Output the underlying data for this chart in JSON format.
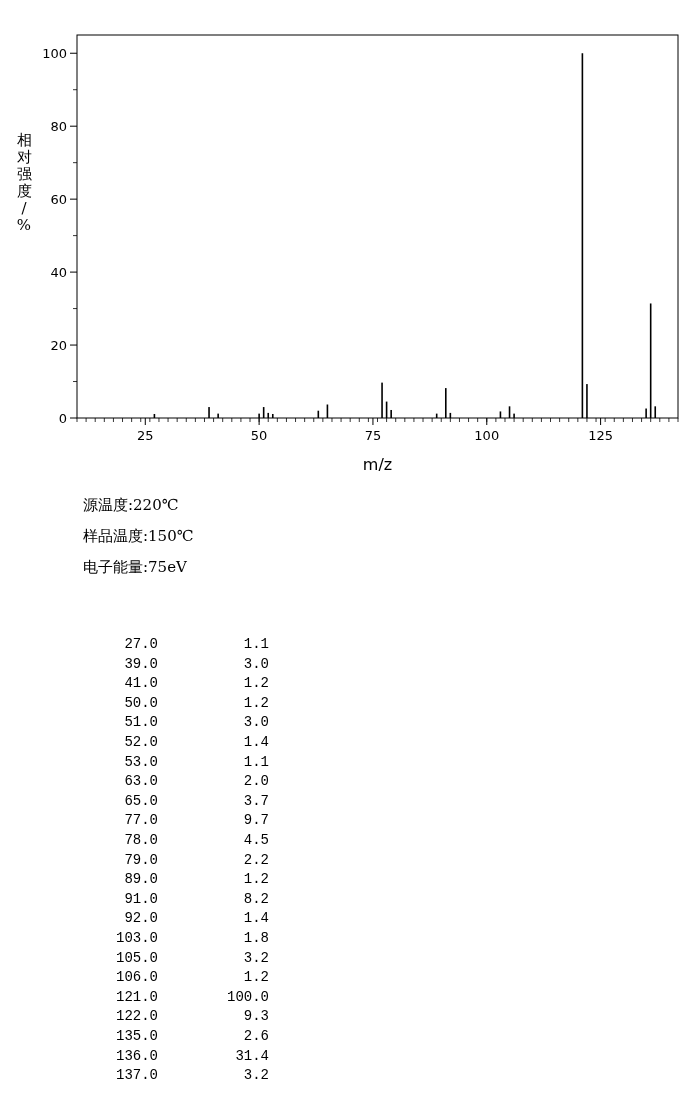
{
  "chart_data": [
    {
      "type": "bar",
      "xlabel": "m/z",
      "ylabel": "相对强度/%",
      "annotations": [
        "源温度:220℃",
        "样品温度:150℃",
        "电子能量:75eV"
      ],
      "x": [
        27,
        39,
        41,
        50,
        51,
        52,
        53,
        63,
        65,
        77,
        78,
        79,
        89,
        91,
        92,
        103,
        105,
        106,
        121,
        122,
        135,
        136,
        137
      ],
      "values": [
        1.1,
        3.0,
        1.2,
        1.2,
        3.0,
        1.4,
        1.1,
        2.0,
        3.7,
        9.7,
        4.5,
        2.2,
        1.2,
        8.2,
        1.4,
        1.8,
        3.2,
        1.2,
        100.0,
        9.3,
        2.6,
        31.4,
        3.2
      ],
      "color": "#000000",
      "grid": false,
      "legend": false,
      "xlim": [
        10,
        142
      ],
      "ylim": [
        0,
        105
      ],
      "xticks": [
        25,
        50,
        75,
        100,
        125
      ],
      "yticks": [
        0,
        20,
        40,
        60,
        80,
        100
      ]
    },
    {
      "type": "other",
      "categories": [
        "27.0",
        "39.0",
        "41.0",
        "50.0",
        "51.0",
        "52.0",
        "53.0",
        "63.0",
        "65.0",
        "77.0",
        "78.0",
        "79.0",
        "89.0",
        "91.0",
        "92.0",
        "103.0",
        "105.0",
        "106.0",
        "121.0",
        "122.0",
        "135.0",
        "136.0",
        "137.0"
      ],
      "values": [
        1.1,
        3.0,
        1.2,
        1.2,
        3.0,
        1.4,
        1.1,
        2.0,
        3.7,
        9.7,
        4.5,
        2.2,
        1.2,
        8.2,
        1.4,
        1.8,
        3.2,
        1.2,
        100.0,
        9.3,
        2.6,
        31.4,
        3.2
      ],
      "value_labels": [
        "1.1",
        "3.0",
        "1.2",
        "1.2",
        "3.0",
        "1.4",
        "1.1",
        "2.0",
        "3.7",
        "9.7",
        "4.5",
        "2.2",
        "1.2",
        "8.2",
        "1.4",
        "1.8",
        "3.2",
        "1.2",
        "100.0",
        "9.3",
        "2.6",
        "31.4",
        "3.2"
      ]
    }
  ]
}
